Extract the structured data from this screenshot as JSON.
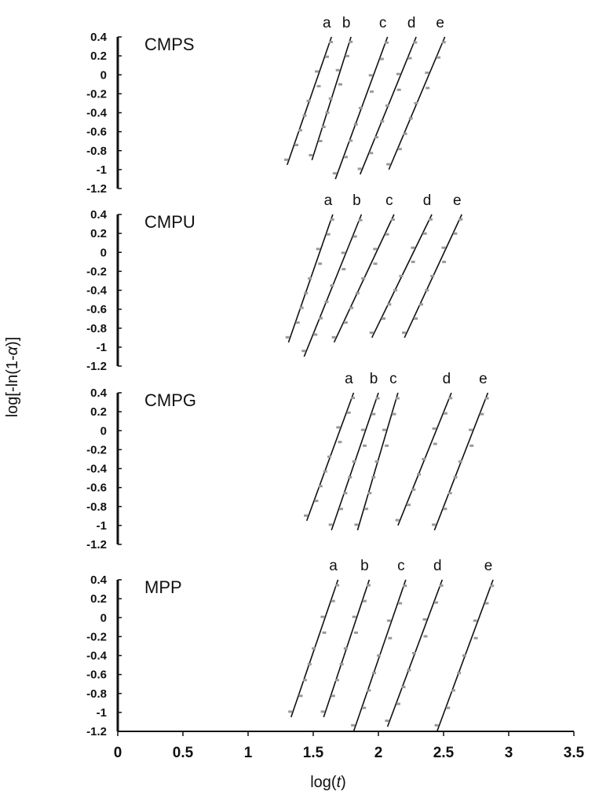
{
  "chart_data": {
    "type": "line",
    "ylabel_parts": [
      "log[-ln(1-",
      "α",
      ")]"
    ],
    "xlabel_parts": [
      "log(",
      "t",
      ")"
    ],
    "xlim": [
      0,
      3.5
    ],
    "ylim": [
      -1.2,
      0.4
    ],
    "x_ticks": [
      "0",
      "0.5",
      "1",
      "1.5",
      "2",
      "2.5",
      "3",
      "3.5"
    ],
    "y_ticks": [
      "0.4",
      "0.2",
      "0",
      "-0.2",
      "-0.4",
      "-0.6",
      "-0.8",
      "-1",
      "-1.2"
    ],
    "colors": {
      "line": "#111111",
      "points": "#9a9a9a",
      "axis": "#111111"
    },
    "panels": [
      {
        "title": "CMPS",
        "series": [
          {
            "label": "a",
            "line": [
              [
                1.3,
                -0.95
              ],
              [
                1.64,
                0.4
              ]
            ]
          },
          {
            "label": "b",
            "line": [
              [
                1.49,
                -0.9
              ],
              [
                1.79,
                0.4
              ]
            ]
          },
          {
            "label": "c",
            "line": [
              [
                1.67,
                -1.1
              ],
              [
                2.07,
                0.4
              ]
            ]
          },
          {
            "label": "d",
            "line": [
              [
                1.86,
                -1.05
              ],
              [
                2.29,
                0.4
              ]
            ]
          },
          {
            "label": "e",
            "line": [
              [
                2.08,
                -1.0
              ],
              [
                2.51,
                0.4
              ]
            ]
          }
        ]
      },
      {
        "title": "CMPU",
        "series": [
          {
            "label": "a",
            "line": [
              [
                1.31,
                -0.95
              ],
              [
                1.65,
                0.4
              ]
            ]
          },
          {
            "label": "b",
            "line": [
              [
                1.43,
                -1.1
              ],
              [
                1.87,
                0.4
              ]
            ]
          },
          {
            "label": "c",
            "line": [
              [
                1.66,
                -0.95
              ],
              [
                2.12,
                0.4
              ]
            ]
          },
          {
            "label": "d",
            "line": [
              [
                1.95,
                -0.9
              ],
              [
                2.41,
                0.4
              ]
            ]
          },
          {
            "label": "e",
            "line": [
              [
                2.2,
                -0.9
              ],
              [
                2.64,
                0.4
              ]
            ]
          }
        ]
      },
      {
        "title": "CMPG",
        "series": [
          {
            "label": "a",
            "line": [
              [
                1.45,
                -0.95
              ],
              [
                1.81,
                0.4
              ]
            ]
          },
          {
            "label": "b",
            "line": [
              [
                1.64,
                -1.05
              ],
              [
                2.0,
                0.4
              ]
            ]
          },
          {
            "label": "c",
            "line": [
              [
                1.84,
                -1.05
              ],
              [
                2.15,
                0.4
              ]
            ]
          },
          {
            "label": "d",
            "line": [
              [
                2.15,
                -1.0
              ],
              [
                2.56,
                0.4
              ]
            ]
          },
          {
            "label": "e",
            "line": [
              [
                2.43,
                -1.05
              ],
              [
                2.84,
                0.4
              ]
            ]
          }
        ]
      },
      {
        "title": "MPP",
        "series": [
          {
            "label": "a",
            "line": [
              [
                1.33,
                -1.05
              ],
              [
                1.69,
                0.4
              ]
            ]
          },
          {
            "label": "b",
            "line": [
              [
                1.58,
                -1.05
              ],
              [
                1.93,
                0.4
              ]
            ]
          },
          {
            "label": "c",
            "line": [
              [
                1.81,
                -1.2
              ],
              [
                2.21,
                0.4
              ]
            ]
          },
          {
            "label": "d",
            "line": [
              [
                2.07,
                -1.15
              ],
              [
                2.49,
                0.4
              ]
            ]
          },
          {
            "label": "e",
            "line": [
              [
                2.45,
                -1.2
              ],
              [
                2.88,
                0.4
              ]
            ]
          }
        ]
      }
    ]
  }
}
